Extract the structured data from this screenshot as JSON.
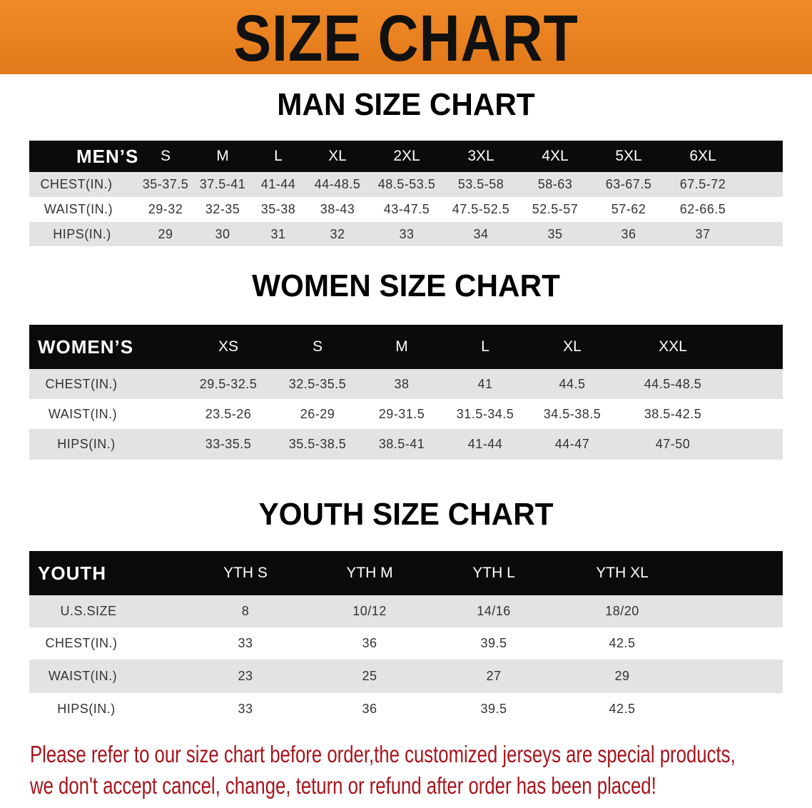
{
  "banner": {
    "title": "SIZE CHART",
    "color": "#e8801f"
  },
  "men": {
    "title": "MAN SIZE CHART",
    "header": [
      "MEN’S",
      "S",
      "M",
      "L",
      "XL",
      "2XL",
      "3XL",
      "4XL",
      "5XL",
      "6XL"
    ],
    "rows": [
      [
        "CHEST(IN.)",
        "35-37.5",
        "37.5-41",
        "41-44",
        "44-48.5",
        "48.5-53.5",
        "53.5-58",
        "58-63",
        "63-67.5",
        "67.5-72"
      ],
      [
        "WAIST(IN.)",
        "29-32",
        "32-35",
        "35-38",
        "38-43",
        "43-47.5",
        "47.5-52.5",
        "52.5-57",
        "57-62",
        "62-66.5"
      ],
      [
        "HIPS(IN.)",
        "29",
        "30",
        "31",
        "32",
        "33",
        "34",
        "35",
        "36",
        "37"
      ]
    ]
  },
  "women": {
    "title": "WOMEN SIZE CHART",
    "header": [
      "WOMEN’S",
      "XS",
      "S",
      "M",
      "L",
      "XL",
      "XXL"
    ],
    "rows": [
      [
        "CHEST(IN.)",
        "29.5-32.5",
        "32.5-35.5",
        "38",
        "41",
        "44.5",
        "44.5-48.5"
      ],
      [
        "WAIST(IN.)",
        "23.5-26",
        "26-29",
        "29-31.5",
        "31.5-34.5",
        "34.5-38.5",
        "38.5-42.5"
      ],
      [
        "HIPS(IN.)",
        "33-35.5",
        "35.5-38.5",
        "38.5-41",
        "41-44",
        "44-47",
        "47-50"
      ]
    ]
  },
  "youth": {
    "title": "YOUTH SIZE CHART",
    "header": [
      "YOUTH",
      "YTH S",
      "YTH M",
      "YTH L",
      "YTH XL"
    ],
    "rows": [
      [
        "U.S.SIZE",
        "8",
        "10/12",
        "14/16",
        "18/20"
      ],
      [
        "CHEST(IN.)",
        "33",
        "36",
        "39.5",
        "42.5"
      ],
      [
        "WAIST(IN.)",
        "23",
        "25",
        "27",
        "29"
      ],
      [
        "HIPS(IN.)",
        "33",
        "36",
        "39.5",
        "42.5"
      ]
    ]
  },
  "notice": {
    "line1": "Please refer to our size chart before order,the customized jerseys are special products,",
    "line2": "we don't accept cancel, change, teturn or refund after order has been placed!",
    "color": "#a8141c"
  }
}
